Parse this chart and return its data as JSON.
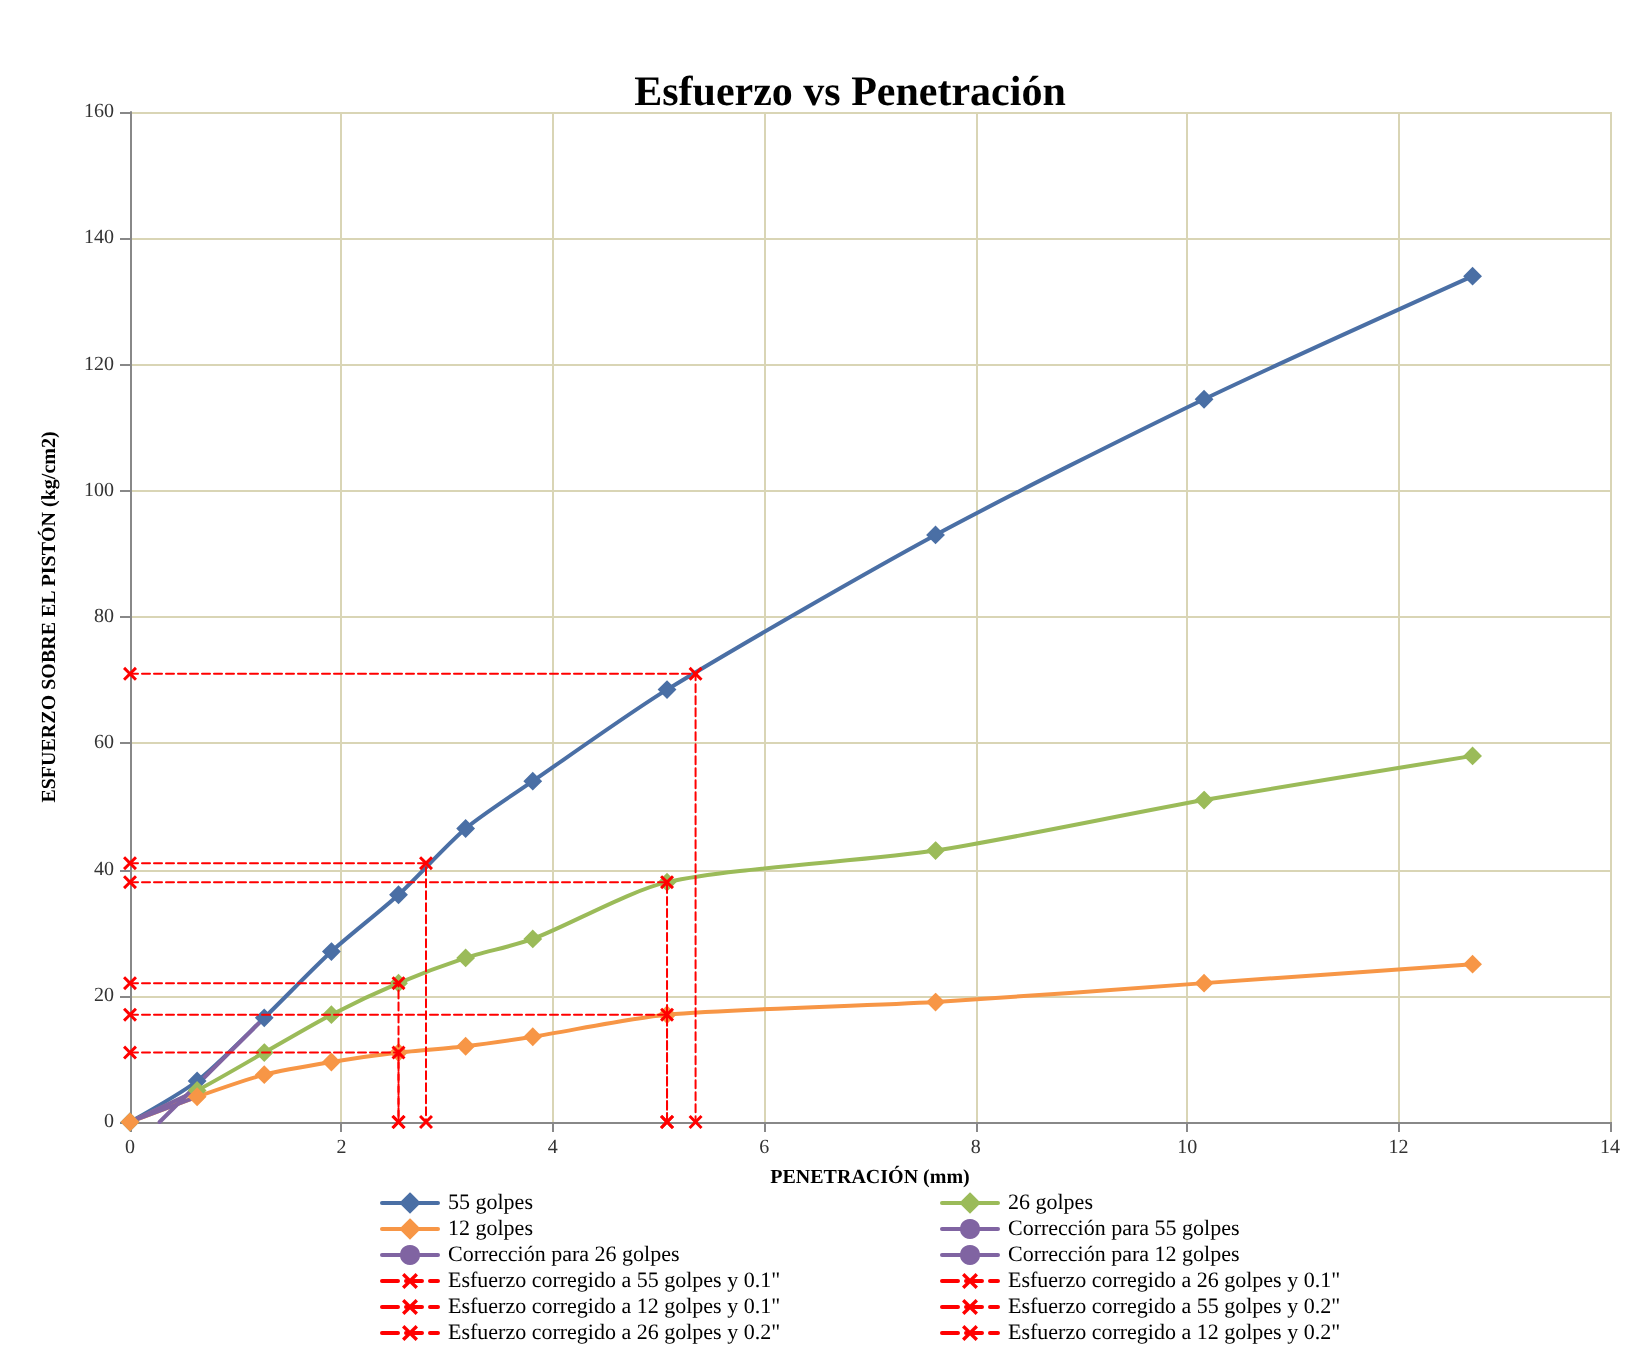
{
  "chart_data": {
    "type": "line",
    "title": "Esfuerzo vs Penetración",
    "xlabel": "PENETRACIÓN (mm)",
    "ylabel": "ESFUERZO SOBRE EL PISTÓN (kg/cm2)",
    "xlim": [
      0,
      14
    ],
    "xticks": [
      0,
      2,
      4,
      6,
      8,
      10,
      12,
      14
    ],
    "ylim": [
      0,
      160
    ],
    "yticks": [
      0,
      20,
      40,
      60,
      80,
      100,
      120,
      140,
      160
    ],
    "grid": true,
    "legend": "bottom",
    "series": [
      {
        "name": "55 golpes",
        "color": "#4a6fa5",
        "marker": "diamond",
        "x": [
          0,
          0.635,
          1.27,
          1.905,
          2.54,
          3.175,
          3.81,
          5.08,
          7.62,
          10.16,
          12.7
        ],
        "values": [
          0,
          6.5,
          16.5,
          27,
          36,
          46.5,
          54,
          68.5,
          93,
          114.5,
          134
        ]
      },
      {
        "name": "26 golpes",
        "color": "#9bbb59",
        "marker": "diamond",
        "x": [
          0,
          0.635,
          1.27,
          1.905,
          2.54,
          3.175,
          3.81,
          5.08,
          7.62,
          10.16,
          12.7
        ],
        "values": [
          0,
          5,
          11,
          17,
          22,
          26,
          29,
          38,
          43,
          51,
          58
        ]
      },
      {
        "name": "12 golpes",
        "color": "#f79646",
        "marker": "diamond",
        "x": [
          0,
          0.635,
          1.27,
          1.905,
          2.54,
          3.175,
          3.81,
          5.08,
          7.62,
          10.16,
          12.7
        ],
        "values": [
          0,
          4,
          7.5,
          9.5,
          11,
          12,
          13.5,
          17,
          19,
          22,
          25
        ]
      },
      {
        "name": "Corrección para 55 golpes",
        "color": "#8064a2",
        "marker": "none",
        "x": [
          0.28,
          1.27
        ],
        "values": [
          0,
          16.5
        ]
      },
      {
        "name": "Corrección para 26 golpes",
        "color": "#8064a2",
        "marker": "none",
        "x": [
          0,
          0.635
        ],
        "values": [
          0,
          5
        ]
      },
      {
        "name": "Corrección para 12 golpes",
        "color": "#8064a2",
        "marker": "none",
        "x": [
          0,
          0.635
        ],
        "values": [
          0,
          4
        ]
      },
      {
        "name": "Esfuerzo corregido a 55 golpes y 0.1\"",
        "color": "#ff0000",
        "marker": "cross",
        "line_style": "dashed",
        "x": [
          0,
          2.8,
          2.8
        ],
        "values": [
          41,
          41,
          0
        ]
      },
      {
        "name": "Esfuerzo corregido a 26 golpes y 0.1\"",
        "color": "#ff0000",
        "marker": "cross",
        "line_style": "dashed",
        "x": [
          0,
          2.54,
          2.54
        ],
        "values": [
          22,
          22,
          0
        ]
      },
      {
        "name": "Esfuerzo corregido a 12 golpes y 0.1\"",
        "color": "#ff0000",
        "marker": "cross",
        "line_style": "dashed",
        "x": [
          0,
          2.54,
          2.54
        ],
        "values": [
          11,
          11,
          0
        ]
      },
      {
        "name": "Esfuerzo corregido a 55 golpes y 0.2\"",
        "color": "#ff0000",
        "marker": "cross",
        "line_style": "dashed",
        "x": [
          0,
          5.35,
          5.35
        ],
        "values": [
          71,
          71,
          0
        ]
      },
      {
        "name": "Esfuerzo corregido a 26 golpes y 0.2\"",
        "color": "#ff0000",
        "marker": "cross",
        "line_style": "dashed",
        "x": [
          0,
          5.08,
          5.08
        ],
        "values": [
          38,
          38,
          0
        ]
      },
      {
        "name": "Esfuerzo corregido a 12 golpes y 0.2\"",
        "color": "#ff0000",
        "marker": "cross",
        "line_style": "dashed",
        "x": [
          0,
          5.08,
          5.08
        ],
        "values": [
          17,
          17,
          0
        ]
      }
    ]
  }
}
